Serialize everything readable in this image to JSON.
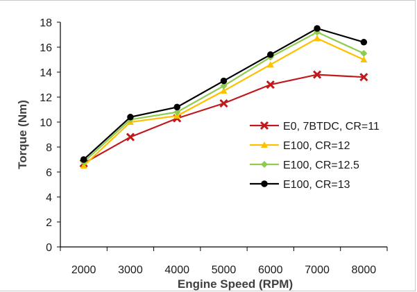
{
  "chart_data": {
    "type": "line",
    "title": "",
    "xlabel": "Engine Speed (RPM)",
    "ylabel": "Torque (Nm)",
    "categories": [
      "2000",
      "3000",
      "4000",
      "5000",
      "6000",
      "7000",
      "8000"
    ],
    "ylim": [
      0,
      18
    ],
    "yticks": [
      0,
      2,
      4,
      6,
      8,
      10,
      12,
      14,
      16,
      18
    ],
    "grid": false,
    "legend_position": "right",
    "series": [
      {
        "name": "E0, 7BTDC, CR=11",
        "color": "#c0191c",
        "marker": "x",
        "values": [
          6.7,
          8.8,
          10.3,
          11.5,
          13.0,
          13.8,
          13.6
        ]
      },
      {
        "name": "E100, CR=12",
        "color": "#ffc000",
        "marker": "triangle",
        "values": [
          6.5,
          10.0,
          10.5,
          12.5,
          14.6,
          16.7,
          15.0
        ]
      },
      {
        "name": "E100, CR=12.5",
        "color": "#8dcc4d",
        "marker": "diamond",
        "values": [
          6.8,
          10.2,
          10.8,
          12.9,
          15.2,
          17.2,
          15.5
        ]
      },
      {
        "name": "E100, CR=13",
        "color": "#000000",
        "marker": "circle",
        "values": [
          7.0,
          10.4,
          11.2,
          13.3,
          15.4,
          17.5,
          16.4
        ]
      }
    ]
  }
}
